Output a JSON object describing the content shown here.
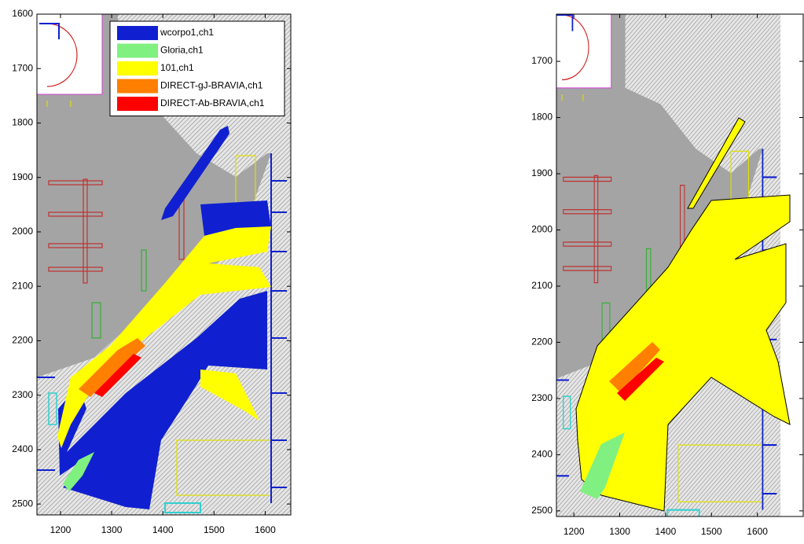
{
  "chart_data": [
    {
      "type": "map",
      "xlim": [
        1154,
        1650
      ],
      "ylim": [
        1600,
        2520
      ],
      "xticks": [
        1200,
        1300,
        1400,
        1500,
        1600
      ],
      "yticks": [
        1600,
        1700,
        1800,
        1900,
        2000,
        2100,
        2200,
        2300,
        2400,
        2500
      ],
      "series": [
        {
          "name": "wcorpo1,ch1",
          "color": "#1020d0"
        },
        {
          "name": "Gloria,ch1",
          "color": "#80f080"
        },
        {
          "name": "101,ch1",
          "color": "#ffff00"
        },
        {
          "name": "DIRECT-gJ-BRAVIA,ch1",
          "color": "#ff7f00"
        },
        {
          "name": "DIRECT-Ab-BRAVIA,ch1",
          "color": "#ff0000"
        }
      ],
      "legend": "upper right"
    },
    {
      "type": "map",
      "xlim": [
        1162,
        1700
      ],
      "ylim": [
        1616,
        2510
      ],
      "xticks": [
        1200,
        1300,
        1400,
        1500,
        1600
      ],
      "yticks": [
        1700,
        1800,
        1900,
        2000,
        2100,
        2200,
        2300,
        2400,
        2500
      ]
    }
  ]
}
